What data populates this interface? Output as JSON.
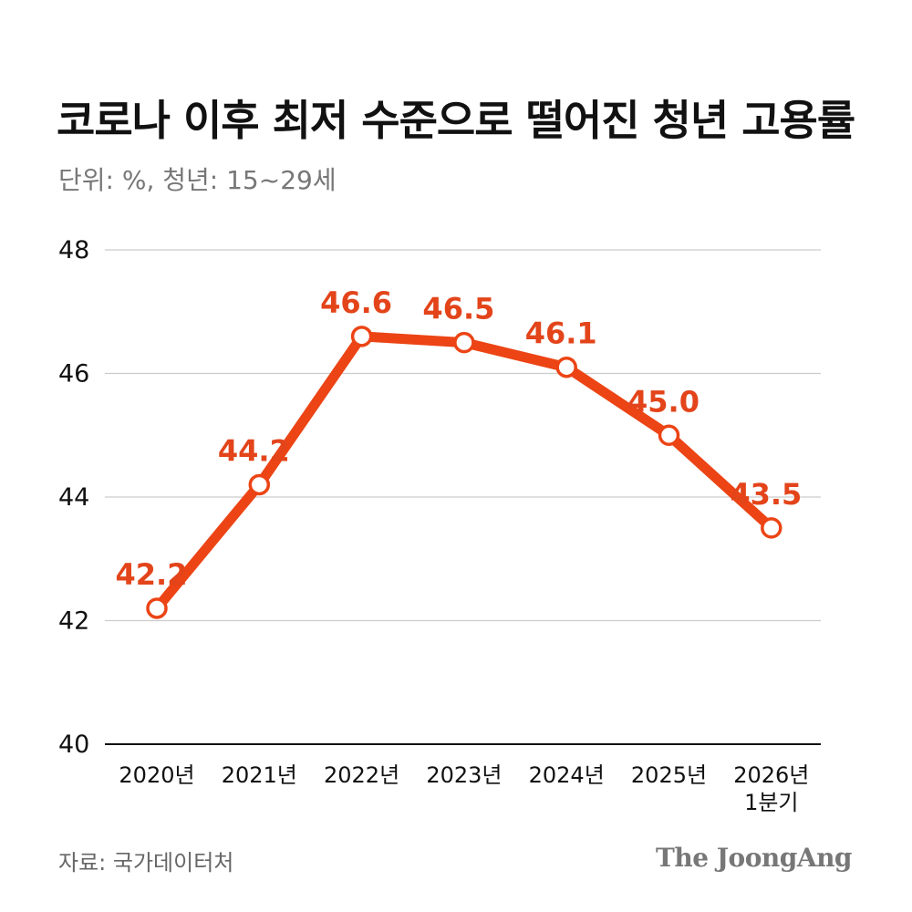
{
  "title": "코로나 이후 최저 수준으로 떨어진 청년 고용률",
  "subtitle": "단위: %, 청년: 15~29세",
  "source": "자료: 국가데이터처",
  "brand": "The JoongAng",
  "colors": {
    "line": "#EC4415",
    "label": "#E3441A",
    "grid": "#CCCCCC",
    "axis": "#111111"
  },
  "chart_data": {
    "type": "line",
    "title": "코로나 이후 최저 수준으로 떨어진 청년 고용률",
    "xlabel": "",
    "ylabel": "",
    "ylim": [
      40,
      48
    ],
    "yticks": [
      40,
      42,
      44,
      46,
      48
    ],
    "categories": [
      [
        "2020년"
      ],
      [
        "2021년"
      ],
      [
        "2022년"
      ],
      [
        "2023년"
      ],
      [
        "2024년"
      ],
      [
        "2025년"
      ],
      [
        "2026년",
        "1분기"
      ]
    ],
    "series": [
      {
        "name": "청년 고용률",
        "values": [
          42.2,
          44.2,
          46.6,
          46.5,
          46.1,
          45.0,
          43.5
        ],
        "labels": [
          "42.2",
          "44.2",
          "46.6",
          "46.5",
          "46.1",
          "45.0",
          "43.5"
        ]
      }
    ]
  }
}
